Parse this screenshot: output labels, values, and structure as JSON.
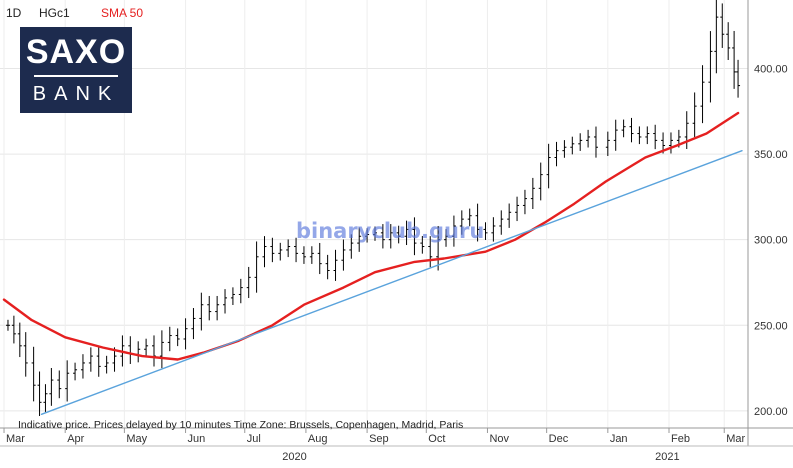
{
  "header": {
    "interval": "1D",
    "symbol": "HGc1",
    "indicator": "SMA 50",
    "indicator_color": "#e52020"
  },
  "logo": {
    "line1": "SAXO",
    "line2": "BANK",
    "bg_color": "#1d2b4e"
  },
  "watermark": "binaryclub.guru",
  "footnote": "Indicative price. Prices delayed by 10 minutes   Time Zone: Brussels, Copenhagen, Madrid, Paris",
  "chart_data": {
    "type": "line",
    "ylim": [
      190,
      440
    ],
    "yticks": [
      200,
      250,
      300,
      350,
      400
    ],
    "ytick_labels": [
      "200.00",
      "250.00",
      "300.00",
      "350.00",
      "400.00"
    ],
    "x_range": [
      "2020-03-02",
      "2021-03-10"
    ],
    "month_labels": [
      {
        "date": "2020-03-01",
        "label": "Mar"
      },
      {
        "date": "2020-04-01",
        "label": "Apr"
      },
      {
        "date": "2020-05-01",
        "label": "May"
      },
      {
        "date": "2020-06-01",
        "label": "Jun"
      },
      {
        "date": "2020-07-01",
        "label": "Jul"
      },
      {
        "date": "2020-08-01",
        "label": "Aug"
      },
      {
        "date": "2020-09-01",
        "label": "Sep"
      },
      {
        "date": "2020-10-01",
        "label": "Oct"
      },
      {
        "date": "2020-11-01",
        "label": "Nov"
      },
      {
        "date": "2020-12-01",
        "label": "Dec"
      },
      {
        "date": "2021-01-01",
        "label": "Jan"
      },
      {
        "date": "2021-02-01",
        "label": "Feb"
      },
      {
        "date": "2021-03-01",
        "label": "Mar"
      }
    ],
    "year_labels": [
      {
        "date": "2020-07-20",
        "label": "2020"
      },
      {
        "date": "2021-01-25",
        "label": "2021"
      }
    ],
    "series": [
      {
        "name": "HGc1",
        "style": "ohlc",
        "color": "#000000",
        "points": [
          [
            "2020-03-03",
            250
          ],
          [
            "2020-03-06",
            245
          ],
          [
            "2020-03-09",
            238
          ],
          [
            "2020-03-12",
            228
          ],
          [
            "2020-03-16",
            215
          ],
          [
            "2020-03-19",
            205
          ],
          [
            "2020-03-22",
            210
          ],
          [
            "2020-03-25",
            218
          ],
          [
            "2020-03-29",
            213
          ],
          [
            "2020-04-02",
            222
          ],
          [
            "2020-04-06",
            224
          ],
          [
            "2020-04-10",
            228
          ],
          [
            "2020-04-14",
            232
          ],
          [
            "2020-04-18",
            226
          ],
          [
            "2020-04-22",
            228
          ],
          [
            "2020-04-26",
            232
          ],
          [
            "2020-04-30",
            238
          ],
          [
            "2020-05-04",
            233
          ],
          [
            "2020-05-08",
            236
          ],
          [
            "2020-05-12",
            238
          ],
          [
            "2020-05-16",
            232
          ],
          [
            "2020-05-20",
            240
          ],
          [
            "2020-05-24",
            244
          ],
          [
            "2020-05-28",
            242
          ],
          [
            "2020-06-01",
            248
          ],
          [
            "2020-06-05",
            254
          ],
          [
            "2020-06-09",
            262
          ],
          [
            "2020-06-13",
            258
          ],
          [
            "2020-06-17",
            262
          ],
          [
            "2020-06-21",
            266
          ],
          [
            "2020-06-25",
            268
          ],
          [
            "2020-06-29",
            272
          ],
          [
            "2020-07-03",
            278
          ],
          [
            "2020-07-07",
            290
          ],
          [
            "2020-07-11",
            296
          ],
          [
            "2020-07-15",
            292
          ],
          [
            "2020-07-19",
            294
          ],
          [
            "2020-07-23",
            296
          ],
          [
            "2020-07-27",
            292
          ],
          [
            "2020-07-31",
            290
          ],
          [
            "2020-08-04",
            292
          ],
          [
            "2020-08-08",
            286
          ],
          [
            "2020-08-12",
            282
          ],
          [
            "2020-08-16",
            288
          ],
          [
            "2020-08-20",
            294
          ],
          [
            "2020-08-24",
            298
          ],
          [
            "2020-08-28",
            302
          ],
          [
            "2020-09-01",
            303
          ],
          [
            "2020-09-05",
            304
          ],
          [
            "2020-09-09",
            300
          ],
          [
            "2020-09-13",
            304
          ],
          [
            "2020-09-17",
            302
          ],
          [
            "2020-09-21",
            306
          ],
          [
            "2020-09-25",
            298
          ],
          [
            "2020-09-29",
            296
          ],
          [
            "2020-10-03",
            290
          ],
          [
            "2020-10-07",
            300
          ],
          [
            "2020-10-11",
            302
          ],
          [
            "2020-10-15",
            308
          ],
          [
            "2020-10-19",
            312
          ],
          [
            "2020-10-23",
            314
          ],
          [
            "2020-10-27",
            306
          ],
          [
            "2020-10-31",
            304
          ],
          [
            "2020-11-04",
            308
          ],
          [
            "2020-11-08",
            312
          ],
          [
            "2020-11-12",
            316
          ],
          [
            "2020-11-16",
            320
          ],
          [
            "2020-11-20",
            324
          ],
          [
            "2020-11-24",
            330
          ],
          [
            "2020-11-28",
            338
          ],
          [
            "2020-12-02",
            348
          ],
          [
            "2020-12-06",
            352
          ],
          [
            "2020-12-10",
            354
          ],
          [
            "2020-12-14",
            356
          ],
          [
            "2020-12-18",
            358
          ],
          [
            "2020-12-22",
            360
          ],
          [
            "2020-12-26",
            354
          ],
          [
            "2021-01-01",
            358
          ],
          [
            "2021-01-05",
            364
          ],
          [
            "2021-01-09",
            366
          ],
          [
            "2021-01-13",
            362
          ],
          [
            "2021-01-17",
            360
          ],
          [
            "2021-01-21",
            362
          ],
          [
            "2021-01-25",
            358
          ],
          [
            "2021-01-29",
            355
          ],
          [
            "2021-02-02",
            358
          ],
          [
            "2021-02-06",
            360
          ],
          [
            "2021-02-10",
            368
          ],
          [
            "2021-02-14",
            378
          ],
          [
            "2021-02-18",
            392
          ],
          [
            "2021-02-22",
            410
          ],
          [
            "2021-02-25",
            430
          ],
          [
            "2021-02-28",
            420
          ],
          [
            "2021-03-03",
            412
          ],
          [
            "2021-03-06",
            398
          ],
          [
            "2021-03-08",
            390
          ]
        ]
      },
      {
        "name": "SMA 50",
        "style": "line",
        "color": "#e52020",
        "points": [
          [
            "2020-03-01",
            265
          ],
          [
            "2020-03-15",
            253
          ],
          [
            "2020-04-01",
            243
          ],
          [
            "2020-04-20",
            237
          ],
          [
            "2020-05-10",
            232
          ],
          [
            "2020-05-28",
            230
          ],
          [
            "2020-06-10",
            234
          ],
          [
            "2020-06-28",
            241
          ],
          [
            "2020-07-15",
            250
          ],
          [
            "2020-07-31",
            262
          ],
          [
            "2020-08-20",
            272
          ],
          [
            "2020-09-05",
            281
          ],
          [
            "2020-09-25",
            287
          ],
          [
            "2020-10-10",
            289
          ],
          [
            "2020-10-31",
            293
          ],
          [
            "2020-11-15",
            300
          ],
          [
            "2020-11-30",
            310
          ],
          [
            "2020-12-15",
            321
          ],
          [
            "2020-12-31",
            334
          ],
          [
            "2021-01-20",
            348
          ],
          [
            "2021-02-05",
            355
          ],
          [
            "2021-02-20",
            362
          ],
          [
            "2021-03-08",
            374
          ]
        ]
      },
      {
        "name": "trendline",
        "style": "line",
        "color": "#5aa3dc",
        "points": [
          [
            "2020-03-20",
            198
          ],
          [
            "2021-03-10",
            352
          ]
        ]
      }
    ]
  }
}
